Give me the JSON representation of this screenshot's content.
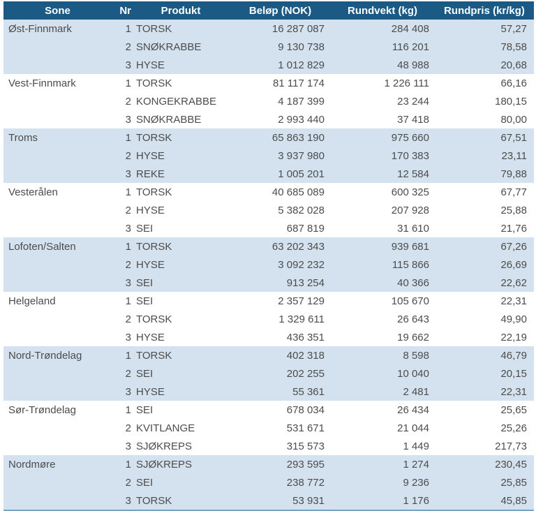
{
  "colors": {
    "header_bg": "#1a5a85",
    "header_text": "#ffffff",
    "row_highlight": "#d3e2ee",
    "row_plain": "#ffffff",
    "text": "#4c4c4c",
    "bottom_border": "#74a3c4"
  },
  "chart_data": {
    "type": "table",
    "columns": [
      "Sone",
      "Nr",
      "Produkt",
      "Beløp (NOK)",
      "Rundvekt (kg)",
      "Rundpris (kr/kg)"
    ],
    "layout": {
      "header_style": "dark-blue bar, white bold text",
      "group_striping": "zone groups alternate light-blue / white",
      "number_format": "space thousands separator, comma decimal"
    },
    "groups": [
      {
        "sone": "Øst-Finnmark",
        "highlighted": true,
        "rows": [
          [
            "1",
            "TORSK",
            "16 287 087",
            "284 408",
            "57,27"
          ],
          [
            "2",
            "SNØKRABBE",
            "9 130 738",
            "116 201",
            "78,58"
          ],
          [
            "3",
            "HYSE",
            "1 012 829",
            "48 988",
            "20,68"
          ]
        ]
      },
      {
        "sone": "Vest-Finnmark",
        "highlighted": false,
        "rows": [
          [
            "1",
            "TORSK",
            "81 117 174",
            "1 226 111",
            "66,16"
          ],
          [
            "2",
            "KONGEKRABBE",
            "4 187 399",
            "23 244",
            "180,15"
          ],
          [
            "3",
            "SNØKRABBE",
            "2 993 440",
            "37 418",
            "80,00"
          ]
        ]
      },
      {
        "sone": "Troms",
        "highlighted": true,
        "rows": [
          [
            "1",
            "TORSK",
            "65 863 190",
            "975 660",
            "67,51"
          ],
          [
            "2",
            "HYSE",
            "3 937 980",
            "170 383",
            "23,11"
          ],
          [
            "3",
            "REKE",
            "1 005 201",
            "12 584",
            "79,88"
          ]
        ]
      },
      {
        "sone": "Vesterålen",
        "highlighted": false,
        "rows": [
          [
            "1",
            "TORSK",
            "40 685 089",
            "600 325",
            "67,77"
          ],
          [
            "2",
            "HYSE",
            "5 382 028",
            "207 928",
            "25,88"
          ],
          [
            "3",
            "SEI",
            "687 819",
            "31 610",
            "21,76"
          ]
        ]
      },
      {
        "sone": "Lofoten/Salten",
        "highlighted": true,
        "rows": [
          [
            "1",
            "TORSK",
            "63 202 343",
            "939 681",
            "67,26"
          ],
          [
            "2",
            "HYSE",
            "3 092 232",
            "115 866",
            "26,69"
          ],
          [
            "3",
            "SEI",
            "913 254",
            "40 366",
            "22,62"
          ]
        ]
      },
      {
        "sone": "Helgeland",
        "highlighted": false,
        "rows": [
          [
            "1",
            "SEI",
            "2 357 129",
            "105 670",
            "22,31"
          ],
          [
            "2",
            "TORSK",
            "1 329 611",
            "26 643",
            "49,90"
          ],
          [
            "3",
            "HYSE",
            "436 351",
            "19 662",
            "22,19"
          ]
        ]
      },
      {
        "sone": "Nord-Trøndelag",
        "highlighted": true,
        "rows": [
          [
            "1",
            "TORSK",
            "402 318",
            "8 598",
            "46,79"
          ],
          [
            "2",
            "SEI",
            "202 255",
            "10 040",
            "20,15"
          ],
          [
            "3",
            "HYSE",
            "55 361",
            "2 481",
            "22,31"
          ]
        ]
      },
      {
        "sone": "Sør-Trøndelag",
        "highlighted": false,
        "rows": [
          [
            "1",
            "SEI",
            "678 034",
            "26 434",
            "25,65"
          ],
          [
            "2",
            "KVITLANGE",
            "531 671",
            "21 044",
            "25,26"
          ],
          [
            "3",
            "SJØKREPS",
            "315 573",
            "1 449",
            "217,73"
          ]
        ]
      },
      {
        "sone": "Nordmøre",
        "highlighted": true,
        "rows": [
          [
            "1",
            "SJØKREPS",
            "293 595",
            "1 274",
            "230,45"
          ],
          [
            "2",
            "SEI",
            "238 772",
            "9 236",
            "25,85"
          ],
          [
            "3",
            "TORSK",
            "53 931",
            "1 176",
            "45,85"
          ]
        ]
      }
    ]
  }
}
